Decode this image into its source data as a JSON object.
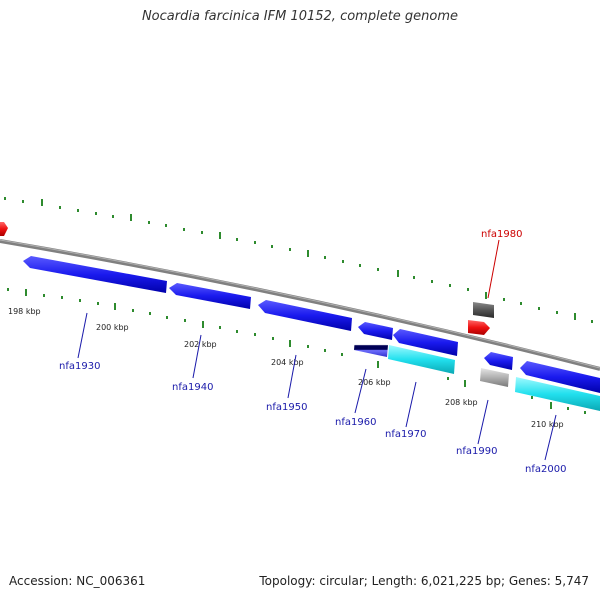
{
  "title": "Nocardia farcinica IFM 10152, complete genome",
  "footer": {
    "accession_label": "Accession: NC_006361",
    "summary": "Topology: circular; Length: 6,021,225 bp; Genes: 5,747"
  },
  "colors": {
    "backbone": "#808080",
    "tick": "#2e8b2e",
    "gene_blue": "#1a1aee",
    "gene_cyan": "#22e0ee",
    "gene_red": "#ee1111",
    "gene_gray": "#999999",
    "gene_dark": "#444444",
    "label_blue": "#1a1aaa",
    "label_red": "#cc0000"
  },
  "scale_labels": [
    "198 kbp",
    "200 kbp",
    "202 kbp",
    "204 kbp",
    "206 kbp",
    "208 kbp",
    "210 kbp"
  ],
  "genes": [
    {
      "label": "nfa1930",
      "strand": "reverse",
      "type": "blue"
    },
    {
      "label": "nfa1940",
      "strand": "reverse",
      "type": "blue"
    },
    {
      "label": "nfa1950",
      "strand": "reverse",
      "type": "blue"
    },
    {
      "label": "nfa1960",
      "strand": "reverse",
      "type": "blue_striped"
    },
    {
      "label": "nfa1970",
      "strand": "reverse",
      "type": "blue_cyan"
    },
    {
      "label": "nfa1980",
      "strand": "forward",
      "type": "red_gray"
    },
    {
      "label": "nfa1990",
      "strand": "reverse",
      "type": "blue_gray"
    },
    {
      "label": "nfa2000",
      "strand": "reverse",
      "type": "blue_cyan"
    }
  ]
}
